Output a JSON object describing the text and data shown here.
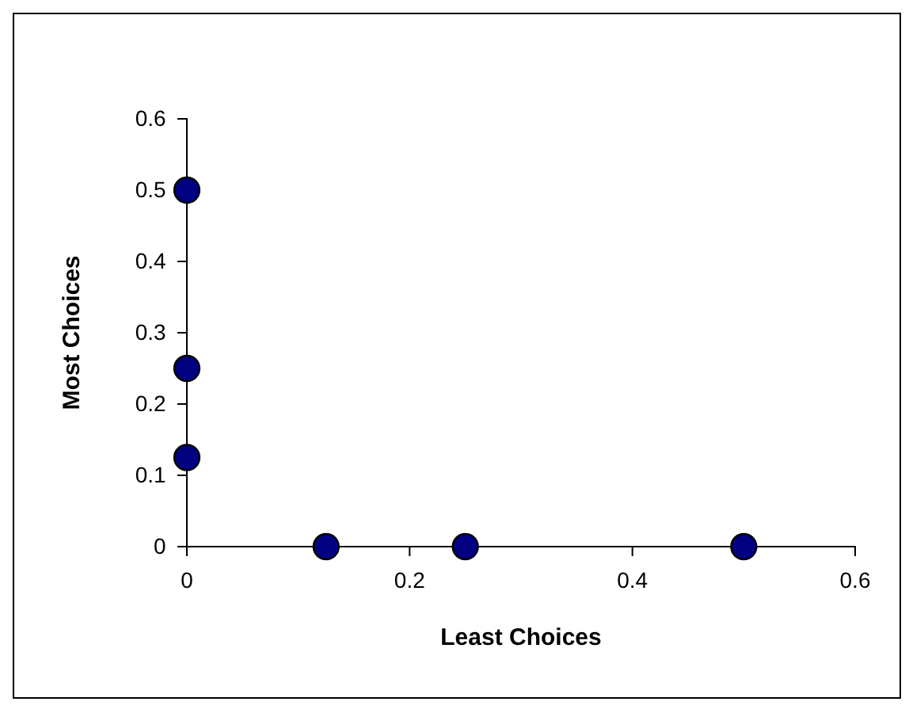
{
  "chart_data": {
    "type": "scatter",
    "xlabel": "Least Choices",
    "ylabel": "Most Choices",
    "x": [
      0,
      0,
      0,
      0.125,
      0.25,
      0.5
    ],
    "series": [
      {
        "color": "#000080",
        "values": [
          0.5,
          0.25,
          0.125,
          0,
          0,
          0
        ]
      }
    ],
    "xlim": [
      0,
      0.6
    ],
    "ylim": [
      0,
      0.6
    ],
    "xticks": [
      0,
      0.2,
      0.4,
      0.6
    ],
    "yticks": [
      0,
      0.1,
      0.2,
      0.3,
      0.4,
      0.5,
      0.6
    ],
    "marker": "circle"
  }
}
